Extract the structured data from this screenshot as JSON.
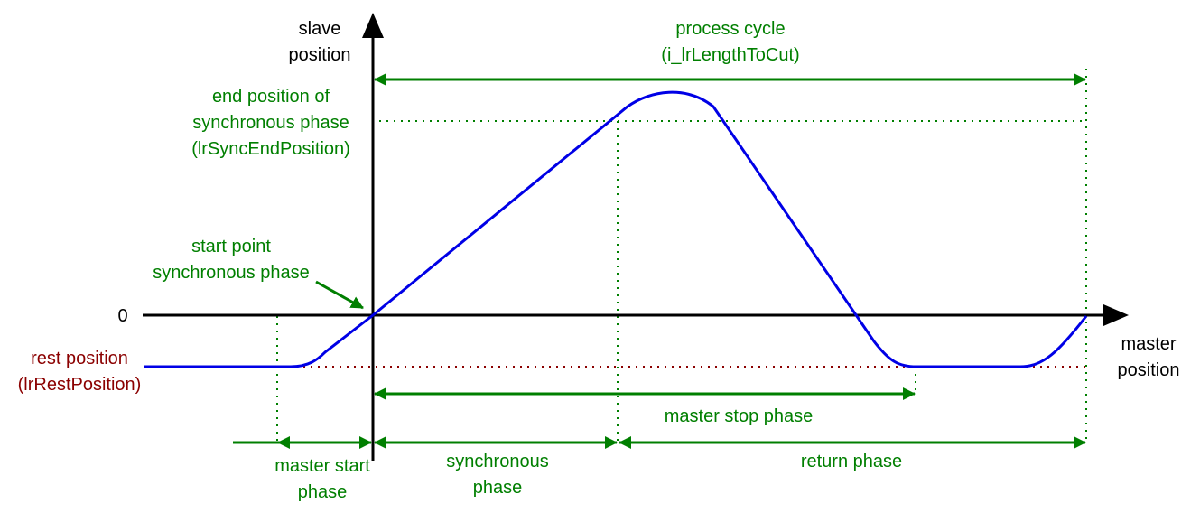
{
  "colors": {
    "axis": "#000000",
    "annotation": "#007f00",
    "curve": "#0000e6",
    "rest": "#8b0000"
  },
  "axes": {
    "y_label_line1": "slave",
    "y_label_line2": "position",
    "x_label_line1": "master",
    "x_label_line2": "position",
    "zero_label": "0"
  },
  "labels": {
    "process_cycle_line1": "process cycle",
    "process_cycle_line2": "(i_lrLengthToCut)",
    "end_position_line1": "end position of",
    "end_position_line2": "synchronous phase",
    "end_position_line3": "(lrSyncEndPosition)",
    "start_point_line1": "start point",
    "start_point_line2": "synchronous phase",
    "rest_position_line1": "rest position",
    "rest_position_line2": "(lrRestPosition)",
    "master_stop_phase": "master stop phase",
    "master_start_phase_line1": "master start",
    "master_start_phase_line2": "phase",
    "synchronous_phase_line1": "synchronous",
    "synchronous_phase_line2": "phase",
    "return_phase": "return phase"
  }
}
